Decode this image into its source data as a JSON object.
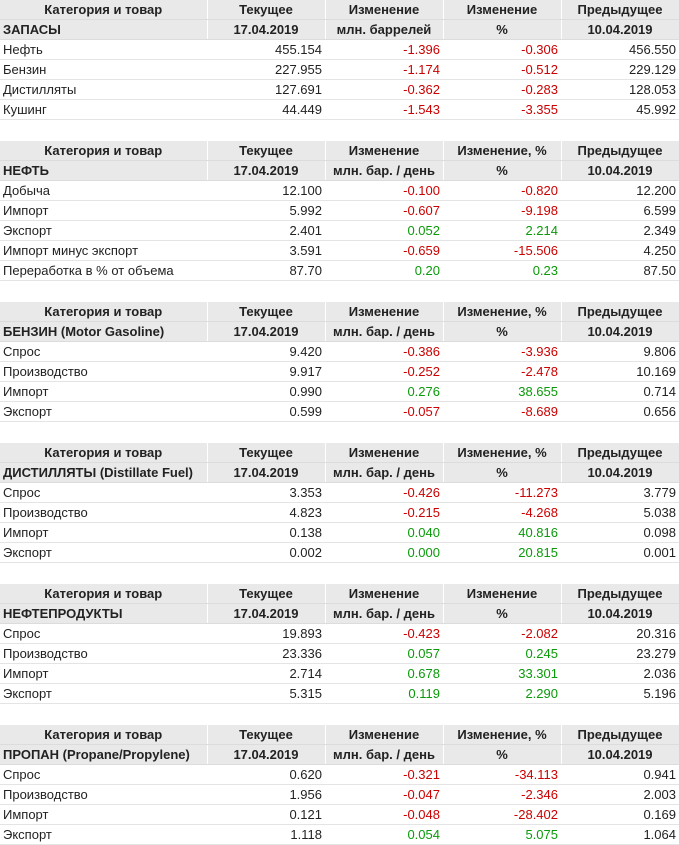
{
  "colors": {
    "negative": "#cc0000",
    "positive": "#0a9a0a",
    "header_bg": "#e9e9e9"
  },
  "sections": [
    {
      "id": "stocks",
      "header": [
        "Категория и товар",
        "Текущее",
        "Изменение",
        "Изменение",
        "Предыдущее"
      ],
      "subheader": [
        "ЗАПАСЫ",
        "17.04.2019",
        "млн. баррелей",
        "%",
        "10.04.2019"
      ],
      "rows": [
        [
          "Нефть",
          "455.154",
          "-1.396",
          "-0.306",
          "456.550"
        ],
        [
          "Бензин",
          "227.955",
          "-1.174",
          "-0.512",
          "229.129"
        ],
        [
          "Дистилляты",
          "127.691",
          "-0.362",
          "-0.283",
          "128.053"
        ],
        [
          "Кушинг",
          "44.449",
          "-1.543",
          "-3.355",
          "45.992"
        ]
      ]
    },
    {
      "id": "crude",
      "header": [
        "Категория и товар",
        "Текущее",
        "Изменение",
        "Изменение, %",
        "Предыдущее"
      ],
      "subheader": [
        "НЕФТЬ",
        "17.04.2019",
        "млн. бар. / день",
        "%",
        "10.04.2019"
      ],
      "rows": [
        [
          "Добыча",
          "12.100",
          "-0.100",
          "-0.820",
          "12.200"
        ],
        [
          "Импорт",
          "5.992",
          "-0.607",
          "-9.198",
          "6.599"
        ],
        [
          "Экспорт",
          "2.401",
          "0.052",
          "2.214",
          "2.349"
        ],
        [
          "Импорт минус экспорт",
          "3.591",
          "-0.659",
          "-15.506",
          "4.250"
        ],
        [
          "Переработка в % от объема",
          "87.70",
          "0.20",
          "0.23",
          "87.50"
        ]
      ]
    },
    {
      "id": "gasoline",
      "header": [
        "Категория и товар",
        "Текущее",
        "Изменение",
        "Изменение, %",
        "Предыдущее"
      ],
      "subheader": [
        "БЕНЗИН (Motor Gasoline)",
        "17.04.2019",
        "млн. бар. / день",
        "%",
        "10.04.2019"
      ],
      "rows": [
        [
          "Спрос",
          "9.420",
          "-0.386",
          "-3.936",
          "9.806"
        ],
        [
          "Производство",
          "9.917",
          "-0.252",
          "-2.478",
          "10.169"
        ],
        [
          "Импорт",
          "0.990",
          "0.276",
          "38.655",
          "0.714"
        ],
        [
          "Экспорт",
          "0.599",
          "-0.057",
          "-8.689",
          "0.656"
        ]
      ]
    },
    {
      "id": "distillate",
      "header": [
        "Категория и товар",
        "Текущее",
        "Изменение",
        "Изменение, %",
        "Предыдущее"
      ],
      "subheader": [
        "ДИСТИЛЛЯТЫ (Distillate Fuel)",
        "17.04.2019",
        "млн. бар. / день",
        "%",
        "10.04.2019"
      ],
      "rows": [
        [
          "Спрос",
          "3.353",
          "-0.426",
          "-11.273",
          "3.779"
        ],
        [
          "Производство",
          "4.823",
          "-0.215",
          "-4.268",
          "5.038"
        ],
        [
          "Импорт",
          "0.138",
          "0.040",
          "40.816",
          "0.098"
        ],
        [
          "Экспорт",
          "0.002",
          "0.000",
          "20.815",
          "0.001"
        ]
      ]
    },
    {
      "id": "products",
      "header": [
        "Категория и товар",
        "Текущее",
        "Изменение",
        "Изменение",
        "Предыдущее"
      ],
      "subheader": [
        "НЕФТЕПРОДУКТЫ",
        "17.04.2019",
        "млн. бар. / день",
        "%",
        "10.04.2019"
      ],
      "rows": [
        [
          "Спрос",
          "19.893",
          "-0.423",
          "-2.082",
          "20.316"
        ],
        [
          "Производство",
          "23.336",
          "0.057",
          "0.245",
          "23.279"
        ],
        [
          "Импорт",
          "2.714",
          "0.678",
          "33.301",
          "2.036"
        ],
        [
          "Экспорт",
          "5.315",
          "0.119",
          "2.290",
          "5.196"
        ]
      ]
    },
    {
      "id": "propane",
      "header": [
        "Категория и товар",
        "Текущее",
        "Изменение",
        "Изменение, %",
        "Предыдущее"
      ],
      "subheader": [
        "ПРОПАН (Propane/Propylene)",
        "17.04.2019",
        "млн. бар. / день",
        "%",
        "10.04.2019"
      ],
      "rows": [
        [
          "Спрос",
          "0.620",
          "-0.321",
          "-34.113",
          "0.941"
        ],
        [
          "Производство",
          "1.956",
          "-0.047",
          "-2.346",
          "2.003"
        ],
        [
          "Импорт",
          "0.121",
          "-0.048",
          "-28.402",
          "0.169"
        ],
        [
          "Экспорт",
          "1.118",
          "0.054",
          "5.075",
          "1.064"
        ]
      ]
    }
  ]
}
